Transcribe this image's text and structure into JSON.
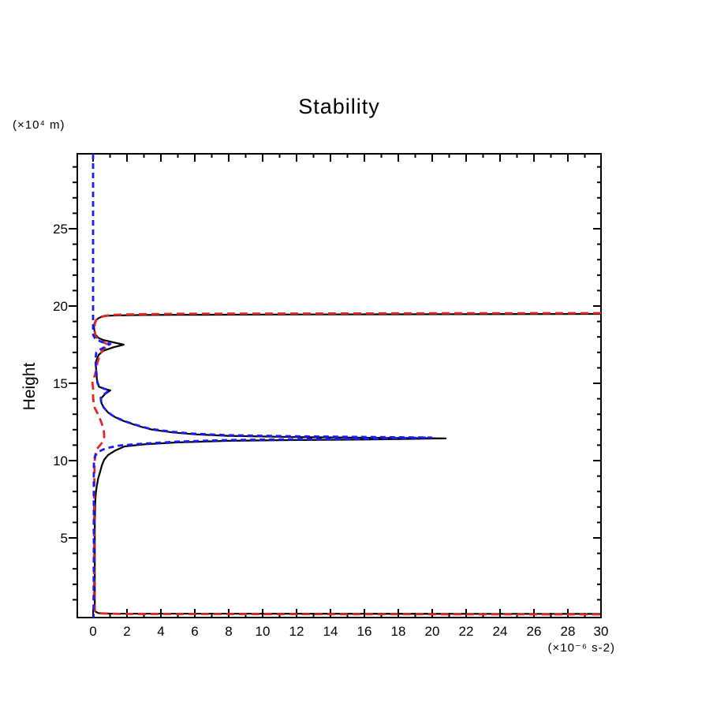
{
  "title": "Stability",
  "labels": {
    "y_unit": "(×10⁴ m)",
    "x_unit": "(×10⁻⁶ s-2)",
    "y_axis_name": "Height"
  },
  "chart_data": {
    "type": "line",
    "title": "Stability",
    "xlabel": "(×10⁻⁶ s-2)",
    "ylabel": "Height (×10⁴ m)",
    "xlim": [
      -0.93,
      29.95
    ],
    "ylim": [
      -0.15,
      29.85
    ],
    "grid": false,
    "legend": "none",
    "frame_color": "#000000",
    "tick_style": "minor every 1 unit; left ticks outward, top/right/bottom ticks inward",
    "x_axis": {
      "min": 0,
      "max": 30,
      "minor_step": 1,
      "major_step": 2,
      "tick_values": [
        0,
        2,
        4,
        6,
        8,
        10,
        12,
        14,
        16,
        18,
        20,
        22,
        24,
        26,
        28,
        30
      ],
      "tick_labels": [
        "0",
        "2",
        "4",
        "6",
        "8",
        "10",
        "12",
        "14",
        "16",
        "18",
        "20",
        "22",
        "24",
        "26",
        "28",
        "30"
      ]
    },
    "y_axis": {
      "min": 0,
      "max": 29,
      "minor_step": 1,
      "major_step": 5,
      "tick_values": [
        5,
        10,
        15,
        20,
        25
      ],
      "tick_labels": [
        "5",
        "10",
        "15",
        "20",
        "25"
      ]
    },
    "series": [
      {
        "name": "black-solid",
        "color": "#000000",
        "style": "solid",
        "width": 2.2,
        "dash": null,
        "points": [
          [
            30,
            19.49
          ],
          [
            20,
            19.47
          ],
          [
            10,
            19.45
          ],
          [
            5,
            19.43
          ],
          [
            3,
            19.42
          ],
          [
            1.6,
            19.4
          ],
          [
            0.9,
            19.37
          ],
          [
            0.5,
            19.3
          ],
          [
            0.33,
            19.22
          ],
          [
            0.15,
            19.05
          ],
          [
            0.08,
            18.88
          ],
          [
            0.05,
            18.67
          ],
          [
            0.08,
            18.4
          ],
          [
            0.14,
            18.15
          ],
          [
            0.3,
            17.95
          ],
          [
            0.6,
            17.8
          ],
          [
            1.2,
            17.65
          ],
          [
            1.81,
            17.5
          ],
          [
            1.2,
            17.33
          ],
          [
            0.6,
            17.1
          ],
          [
            0.33,
            16.84
          ],
          [
            0.2,
            16.5
          ],
          [
            0.16,
            16.22
          ],
          [
            0.18,
            15.9
          ],
          [
            0.2,
            15.66
          ],
          [
            0.23,
            15.25
          ],
          [
            0.25,
            15.0
          ],
          [
            0.35,
            14.78
          ],
          [
            0.65,
            14.65
          ],
          [
            1.02,
            14.54
          ],
          [
            0.7,
            14.3
          ],
          [
            0.47,
            14.03
          ],
          [
            0.5,
            13.7
          ],
          [
            0.65,
            13.4
          ],
          [
            0.9,
            13.1
          ],
          [
            1.16,
            12.9
          ],
          [
            1.6,
            12.65
          ],
          [
            2.09,
            12.45
          ],
          [
            2.8,
            12.2
          ],
          [
            3.5,
            12.0
          ],
          [
            4.7,
            11.82
          ],
          [
            6.0,
            11.7
          ],
          [
            8.0,
            11.6
          ],
          [
            12.0,
            11.52
          ],
          [
            16.0,
            11.48
          ],
          [
            20.8,
            11.44
          ],
          [
            16.0,
            11.36
          ],
          [
            12.0,
            11.33
          ],
          [
            8.0,
            11.28
          ],
          [
            5.0,
            11.18
          ],
          [
            3.0,
            11.05
          ],
          [
            1.86,
            10.92
          ],
          [
            1.3,
            10.65
          ],
          [
            0.88,
            10.36
          ],
          [
            0.65,
            10.05
          ],
          [
            0.52,
            9.7
          ],
          [
            0.42,
            9.29
          ],
          [
            0.3,
            8.85
          ],
          [
            0.23,
            8.42
          ],
          [
            0.17,
            8.0
          ],
          [
            0.14,
            7.55
          ],
          [
            0.12,
            7.0
          ],
          [
            0.1,
            6.0
          ],
          [
            0.1,
            4.0
          ],
          [
            0.1,
            2.0
          ],
          [
            0.1,
            0.6
          ],
          [
            0.12,
            0.25
          ],
          [
            0.3,
            0.14
          ],
          [
            1.0,
            0.1
          ],
          [
            30,
            0.08
          ]
        ]
      },
      {
        "name": "red-dashed",
        "color": "#e62525",
        "style": "dashed",
        "width": 2.8,
        "dash": [
          10,
          6
        ],
        "points": [
          [
            30,
            19.54
          ],
          [
            20,
            19.53
          ],
          [
            10,
            19.51
          ],
          [
            5,
            19.5
          ],
          [
            2,
            19.46
          ],
          [
            1.0,
            19.42
          ],
          [
            0.56,
            19.33
          ],
          [
            0.3,
            19.22
          ],
          [
            0.19,
            19.1
          ],
          [
            0.1,
            18.85
          ],
          [
            0.09,
            18.62
          ],
          [
            0.1,
            18.35
          ],
          [
            0.14,
            18.05
          ],
          [
            0.3,
            17.85
          ],
          [
            0.55,
            17.7
          ],
          [
            0.93,
            17.48
          ],
          [
            0.6,
            17.2
          ],
          [
            0.42,
            16.9
          ],
          [
            0.3,
            16.5
          ],
          [
            0.23,
            16.22
          ],
          [
            0.19,
            15.9
          ],
          [
            0.1,
            15.5
          ],
          [
            -0.05,
            15.15
          ],
          [
            0.0,
            14.7
          ],
          [
            0.0,
            14.18
          ],
          [
            0.02,
            13.9
          ],
          [
            0.1,
            13.4
          ],
          [
            0.33,
            12.91
          ],
          [
            0.48,
            12.5
          ],
          [
            0.56,
            12.24
          ],
          [
            0.63,
            11.95
          ],
          [
            0.65,
            11.7
          ],
          [
            0.65,
            11.48
          ],
          [
            0.55,
            11.2
          ],
          [
            0.47,
            11.07
          ],
          [
            0.3,
            10.85
          ],
          [
            0.19,
            10.71
          ],
          [
            0.12,
            10.3
          ],
          [
            0.09,
            9.8
          ],
          [
            0.08,
            9.0
          ],
          [
            0.07,
            8.0
          ],
          [
            0.06,
            6.0
          ],
          [
            0.06,
            3.0
          ],
          [
            0.06,
            0.6
          ],
          [
            0.1,
            0.25
          ],
          [
            0.4,
            0.12
          ],
          [
            1.5,
            0.08
          ],
          [
            30,
            0.05
          ]
        ]
      },
      {
        "name": "blue-dashed",
        "color": "#1a1aff",
        "style": "dashed",
        "width": 2.8,
        "dash": [
          7,
          5
        ],
        "points": [
          [
            0.0,
            29.85
          ],
          [
            0.0,
            24.0
          ],
          [
            0.0,
            20.0
          ],
          [
            0.0,
            18.6
          ],
          [
            0.01,
            18.11
          ],
          [
            0.15,
            17.85
          ],
          [
            0.55,
            17.66
          ],
          [
            1.02,
            17.55
          ],
          [
            0.45,
            17.2
          ],
          [
            0.19,
            16.99
          ],
          [
            0.14,
            16.58
          ],
          [
            0.16,
            16.22
          ],
          [
            0.18,
            15.9
          ],
          [
            0.2,
            15.66
          ],
          [
            0.23,
            15.3
          ],
          [
            0.26,
            15.05
          ],
          [
            0.36,
            14.8
          ],
          [
            0.65,
            14.65
          ],
          [
            0.97,
            14.56
          ],
          [
            0.66,
            14.3
          ],
          [
            0.45,
            14.06
          ],
          [
            0.48,
            13.75
          ],
          [
            0.62,
            13.45
          ],
          [
            0.86,
            13.15
          ],
          [
            1.1,
            12.95
          ],
          [
            1.55,
            12.7
          ],
          [
            2.0,
            12.5
          ],
          [
            2.7,
            12.25
          ],
          [
            3.4,
            12.05
          ],
          [
            4.6,
            11.87
          ],
          [
            5.8,
            11.75
          ],
          [
            7.8,
            11.65
          ],
          [
            12.0,
            11.57
          ],
          [
            16.0,
            11.53
          ],
          [
            19.95,
            11.49
          ],
          [
            16.0,
            11.41
          ],
          [
            12.0,
            11.38
          ],
          [
            8.0,
            11.33
          ],
          [
            5.0,
            11.23
          ],
          [
            3.0,
            11.1
          ],
          [
            1.6,
            10.98
          ],
          [
            1.0,
            10.85
          ],
          [
            0.6,
            10.72
          ],
          [
            0.28,
            10.55
          ],
          [
            0.12,
            10.3
          ],
          [
            0.05,
            10.0
          ],
          [
            0.04,
            9.0
          ],
          [
            0.04,
            6.0
          ],
          [
            0.04,
            3.0
          ],
          [
            0.03,
            0.5
          ],
          [
            0.03,
            -0.15
          ]
        ]
      }
    ]
  }
}
